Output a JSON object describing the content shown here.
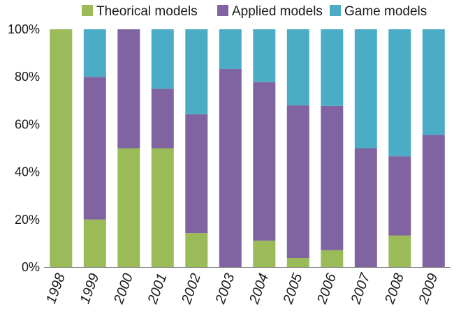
{
  "chart_data": {
    "type": "bar",
    "stacked": true,
    "percent_stacked": true,
    "categories": [
      "1998",
      "1999",
      "2000",
      "2001",
      "2002",
      "2003",
      "2004",
      "2005",
      "2006",
      "2007",
      "2008",
      "2009"
    ],
    "series": [
      {
        "name": "Theorical models",
        "color": "#9bbb59",
        "values": [
          100,
          20,
          50,
          50,
          14.3,
          0,
          11.1,
          3.8,
          7.1,
          0,
          13.3,
          0
        ]
      },
      {
        "name": "Applied models",
        "color": "#8064a2",
        "values": [
          0,
          60,
          50,
          25,
          50,
          83.3,
          66.7,
          64.2,
          60.7,
          50,
          33.3,
          55.6
        ]
      },
      {
        "name": "Game models",
        "color": "#4bacc6",
        "values": [
          0,
          20,
          0,
          25,
          35.7,
          16.7,
          22.2,
          32,
          32.2,
          50,
          53.4,
          44.4
        ]
      }
    ],
    "yticks": [
      "0%",
      "20%",
      "40%",
      "60%",
      "80%",
      "100%"
    ],
    "ylim": [
      0,
      100
    ],
    "legend_position": "top",
    "grid": false
  }
}
